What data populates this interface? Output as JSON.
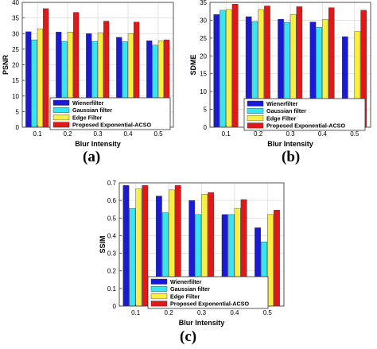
{
  "palette": {
    "Wienerfilter": "#1a1ad6",
    "Gaussian filter": "#35e6f2",
    "Edge Filter": "#f7f043",
    "Proposed Exponential-ACSO": "#e01818"
  },
  "chart_data": [
    {
      "type": "bar",
      "panel_label": "(a)",
      "ylabel": "PSNR",
      "xlabel": "Blur Intensity",
      "categories": [
        "0.1",
        "0.2",
        "0.3",
        "0.4",
        "0.5"
      ],
      "ylim": [
        0,
        40
      ],
      "yticks": [
        "0",
        "5",
        "10",
        "15",
        "20",
        "25",
        "30",
        "35",
        "40"
      ],
      "grid": true,
      "legend_position": "bottom-center",
      "series": [
        {
          "name": "Wienerfilter",
          "values": [
            30.6,
            30.5,
            30.0,
            28.8,
            27.7
          ]
        },
        {
          "name": "Gaussian filter",
          "values": [
            28.0,
            27.5,
            27.5,
            27.4,
            26.3
          ]
        },
        {
          "name": "Edge Filter",
          "values": [
            31.5,
            30.5,
            30.3,
            30.0,
            27.7
          ]
        },
        {
          "name": "Proposed Exponential-ACSO",
          "values": [
            38.0,
            36.8,
            34.0,
            33.7,
            28.0
          ]
        }
      ]
    },
    {
      "type": "bar",
      "panel_label": "(b)",
      "ylabel": "SDME",
      "xlabel": "Blur Intensity",
      "categories": [
        "0.1",
        "0.2",
        "0.3",
        "0.4",
        "0.5"
      ],
      "ylim": [
        0,
        35
      ],
      "yticks": [
        "0",
        "5",
        "10",
        "15",
        "20",
        "25",
        "30",
        "35"
      ],
      "grid": true,
      "legend_position": "bottom-center",
      "series": [
        {
          "name": "Wienerfilter",
          "values": [
            31.6,
            31.0,
            30.3,
            29.5,
            25.4
          ]
        },
        {
          "name": "Gaussian filter",
          "values": [
            32.8,
            29.6,
            29.4,
            28.0,
            5.0
          ]
        },
        {
          "name": "Edge Filter",
          "values": [
            33.0,
            33.0,
            31.6,
            30.2,
            26.8
          ]
        },
        {
          "name": "Proposed Exponential-ACSO",
          "values": [
            34.5,
            34.0,
            33.8,
            33.5,
            32.8
          ]
        }
      ]
    },
    {
      "type": "bar",
      "panel_label": "(c)",
      "ylabel": "SSIM",
      "xlabel": "Blur Intensity",
      "categories": [
        "0.1",
        "0.2",
        "0.3",
        "0.4",
        "0.5"
      ],
      "ylim": [
        0,
        0.7
      ],
      "yticks": [
        "0",
        "0.1",
        "0.2",
        "0.3",
        "0.4",
        "0.5",
        "0.6",
        "0.7"
      ],
      "grid": true,
      "legend_position": "bottom-center",
      "series": [
        {
          "name": "Wienerfilter",
          "values": [
            0.685,
            0.625,
            0.6,
            0.52,
            0.445
          ]
        },
        {
          "name": "Gaussian filter",
          "values": [
            0.555,
            0.53,
            0.52,
            0.52,
            0.365
          ]
        },
        {
          "name": "Edge Filter",
          "values": [
            0.665,
            0.66,
            0.635,
            0.555,
            0.52
          ]
        },
        {
          "name": "Proposed Exponential-ACSO",
          "values": [
            0.685,
            0.685,
            0.645,
            0.605,
            0.545
          ]
        }
      ]
    }
  ]
}
